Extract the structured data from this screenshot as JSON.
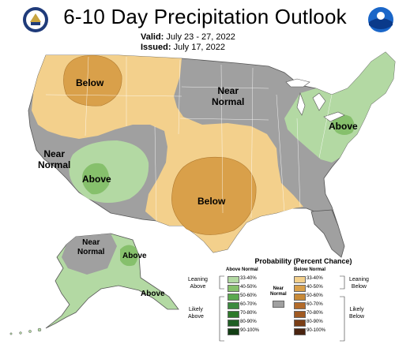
{
  "header": {
    "title": "6-10 Day Precipitation Outlook",
    "valid_label": "Valid:",
    "valid_value": "July 23 - 27, 2022",
    "issued_label": "Issued:",
    "issued_value": "July 17, 2022"
  },
  "map_labels": {
    "below_northwest": "Below",
    "near_normal_north": "Near\nNormal",
    "above_northeast": "Above",
    "near_normal_west": "Near\nNormal",
    "above_southwest": "Above",
    "below_south_central": "Below",
    "near_normal_alaska": "Near\nNormal",
    "above_alaska": "Above",
    "above_alaska_panhandle": "Above"
  },
  "legend": {
    "title": "Probability (Percent Chance)",
    "above_header": "Above Normal",
    "below_header": "Below Normal",
    "near_label": "Near\nNormal",
    "leaning_above": "Leaning\nAbove",
    "likely_above": "Likely\nAbove",
    "leaning_below": "Leaning\nBelow",
    "likely_below": "Likely\nBelow",
    "bins": [
      "33-40%",
      "40-50%",
      "50-60%",
      "60-70%",
      "70-80%",
      "80-90%",
      "90-100%"
    ],
    "above_colors": [
      "#b3d9a3",
      "#86c06c",
      "#5aa84f",
      "#3c8a3f",
      "#2e7a2a",
      "#1f5e24",
      "#123e14"
    ],
    "below_colors": [
      "#f3d08c",
      "#d9a04a",
      "#c88a38",
      "#b36b2a",
      "#a05a22",
      "#7a3e16",
      "#4a2410"
    ],
    "near_color": "#a0a0a0"
  },
  "colors": {
    "leaning_below": "#f3d08c",
    "below_40_50": "#d9a04a",
    "leaning_above": "#b3d9a3",
    "above_40_50": "#86c06c",
    "near_normal": "#a0a0a0"
  }
}
